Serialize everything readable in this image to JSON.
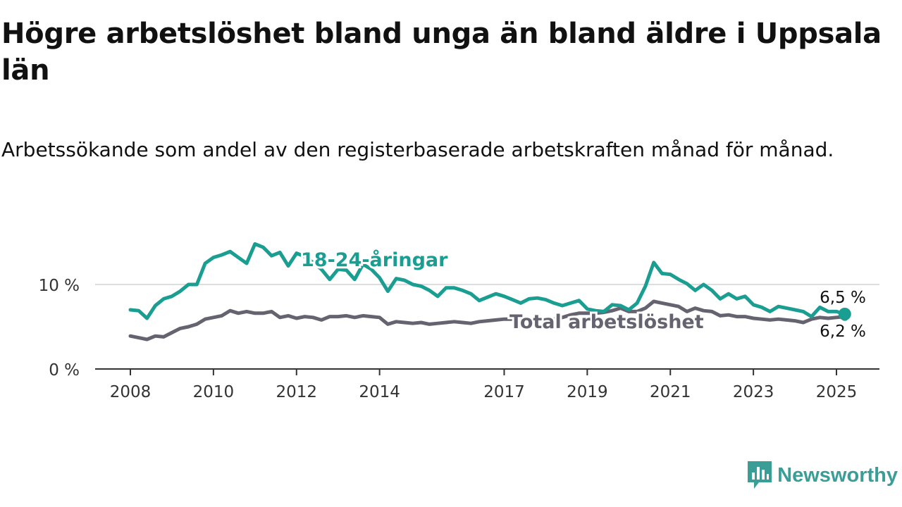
{
  "title": "Högre arbetslöshet bland unga än bland äldre i Uppsala län",
  "subtitle": "Arbetssökande som andel av den registerbaserade arbetskraften månad för månad.",
  "brand": {
    "name": "Newsworthy",
    "color": "#3a9e96",
    "icon": "newsworthy-bar-chart-icon"
  },
  "chart_data": {
    "type": "line",
    "x_unit": "year",
    "y_unit": "%",
    "ylim": [
      0,
      15
    ],
    "yticks": [
      0,
      10
    ],
    "ytick_labels": [
      "0 %",
      "10 %"
    ],
    "xticks": [
      2008,
      2010,
      2012,
      2014,
      2017,
      2019,
      2021,
      2023,
      2025
    ],
    "xtick_labels": [
      "2008",
      "2010",
      "2012",
      "2014",
      "2017",
      "2019",
      "2021",
      "2023",
      "2025"
    ],
    "grid": "horizontal",
    "series": [
      {
        "name": "18-24-åringar",
        "color": "#1a9e92",
        "end_label": "6,5 %",
        "x": [
          2008.0,
          2008.2,
          2008.4,
          2008.6,
          2008.8,
          2009.0,
          2009.2,
          2009.4,
          2009.6,
          2009.8,
          2010.0,
          2010.2,
          2010.4,
          2010.6,
          2010.8,
          2011.0,
          2011.2,
          2011.4,
          2011.6,
          2011.8,
          2012.0,
          2012.2,
          2012.4,
          2012.6,
          2012.8,
          2013.0,
          2013.2,
          2013.4,
          2013.6,
          2013.8,
          2014.0,
          2014.2,
          2014.4,
          2014.6,
          2014.8,
          2015.0,
          2015.2,
          2015.4,
          2015.6,
          2015.8,
          2016.0,
          2016.2,
          2016.4,
          2016.6,
          2016.8,
          2017.0,
          2017.2,
          2017.4,
          2017.6,
          2017.8,
          2018.0,
          2018.2,
          2018.4,
          2018.6,
          2018.8,
          2019.0,
          2019.2,
          2019.4,
          2019.6,
          2019.8,
          2020.0,
          2020.2,
          2020.4,
          2020.6,
          2020.8,
          2021.0,
          2021.2,
          2021.4,
          2021.6,
          2021.8,
          2022.0,
          2022.2,
          2022.4,
          2022.6,
          2022.8,
          2023.0,
          2023.2,
          2023.4,
          2023.6,
          2023.8,
          2024.0,
          2024.2,
          2024.4,
          2024.6,
          2024.8,
          2025.0,
          2025.2
        ],
        "values": [
          7.0,
          6.9,
          6.0,
          7.5,
          8.3,
          8.6,
          9.2,
          10.0,
          10.0,
          12.5,
          13.2,
          13.5,
          13.9,
          13.2,
          12.5,
          14.8,
          14.4,
          13.4,
          13.8,
          12.2,
          13.7,
          13.3,
          12.6,
          11.8,
          10.6,
          11.8,
          11.7,
          10.6,
          12.4,
          11.8,
          10.8,
          9.2,
          10.7,
          10.5,
          10.0,
          9.8,
          9.3,
          8.6,
          9.6,
          9.6,
          9.3,
          8.9,
          8.1,
          8.5,
          8.9,
          8.6,
          8.2,
          7.8,
          8.3,
          8.4,
          8.2,
          7.8,
          7.5,
          7.8,
          8.1,
          7.1,
          6.9,
          6.8,
          7.6,
          7.5,
          7.0,
          7.8,
          9.8,
          12.6,
          11.3,
          11.2,
          10.6,
          10.1,
          9.3,
          10.0,
          9.3,
          8.3,
          8.9,
          8.3,
          8.6,
          7.6,
          7.3,
          6.8,
          7.4,
          7.2,
          7.0,
          6.8,
          6.2,
          7.3,
          6.8,
          6.8,
          6.5
        ]
      },
      {
        "name": "Total arbetslöshet",
        "color": "#666370",
        "end_label": "6,2 %",
        "x": [
          2008.0,
          2008.2,
          2008.4,
          2008.6,
          2008.8,
          2009.0,
          2009.2,
          2009.4,
          2009.6,
          2009.8,
          2010.0,
          2010.2,
          2010.4,
          2010.6,
          2010.8,
          2011.0,
          2011.2,
          2011.4,
          2011.6,
          2011.8,
          2012.0,
          2012.2,
          2012.4,
          2012.6,
          2012.8,
          2013.0,
          2013.2,
          2013.4,
          2013.6,
          2013.8,
          2014.0,
          2014.2,
          2014.4,
          2014.6,
          2014.8,
          2015.0,
          2015.2,
          2015.4,
          2015.6,
          2015.8,
          2016.0,
          2016.2,
          2016.4,
          2016.6,
          2016.8,
          2017.0,
          2017.2,
          2017.4,
          2017.6,
          2017.8,
          2018.0,
          2018.2,
          2018.4,
          2018.6,
          2018.8,
          2019.0,
          2019.2,
          2019.4,
          2019.6,
          2019.8,
          2020.0,
          2020.2,
          2020.4,
          2020.6,
          2020.8,
          2021.0,
          2021.2,
          2021.4,
          2021.6,
          2021.8,
          2022.0,
          2022.2,
          2022.4,
          2022.6,
          2022.8,
          2023.0,
          2023.2,
          2023.4,
          2023.6,
          2023.8,
          2024.0,
          2024.2,
          2024.4,
          2024.6,
          2024.8,
          2025.0,
          2025.2
        ],
        "values": [
          3.9,
          3.7,
          3.5,
          3.9,
          3.8,
          4.3,
          4.8,
          5.0,
          5.3,
          5.9,
          6.1,
          6.3,
          6.9,
          6.6,
          6.8,
          6.6,
          6.6,
          6.8,
          6.1,
          6.3,
          6.0,
          6.2,
          6.1,
          5.8,
          6.2,
          6.2,
          6.3,
          6.1,
          6.3,
          6.2,
          6.1,
          5.3,
          5.6,
          5.5,
          5.4,
          5.5,
          5.3,
          5.4,
          5.5,
          5.6,
          5.5,
          5.4,
          5.6,
          5.7,
          5.8,
          5.9,
          5.9,
          5.9,
          5.9,
          5.9,
          5.9,
          5.9,
          6.1,
          6.4,
          6.6,
          6.6,
          6.6,
          6.7,
          6.9,
          7.2,
          6.8,
          6.8,
          7.2,
          8.0,
          7.8,
          7.6,
          7.4,
          6.8,
          7.2,
          6.9,
          6.8,
          6.3,
          6.4,
          6.2,
          6.2,
          6.0,
          5.9,
          5.8,
          5.9,
          5.8,
          5.7,
          5.5,
          5.9,
          6.1,
          6.0,
          6.1,
          6.2
        ]
      }
    ]
  }
}
